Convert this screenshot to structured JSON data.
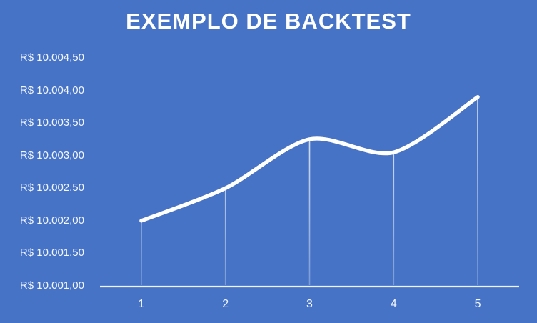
{
  "chart_data": {
    "type": "line",
    "title": "EXEMPLO DE BACKTEST",
    "x": [
      1,
      2,
      3,
      4,
      5
    ],
    "x_tick_labels": [
      "1",
      "2",
      "3",
      "4",
      "5"
    ],
    "series": [
      {
        "name": "Backtest",
        "values": [
          10002.0,
          10002.5,
          10003.25,
          10003.05,
          10003.9
        ]
      }
    ],
    "y_ticks": [
      10001.0,
      10001.5,
      10002.0,
      10002.5,
      10003.0,
      10003.5,
      10004.0,
      10004.5
    ],
    "y_tick_labels": [
      "R$ 10.001,00",
      "R$ 10.001,50",
      "R$ 10.002,00",
      "R$ 10.002,50",
      "R$ 10.003,00",
      "R$ 10.003,50",
      "R$ 10.004,00",
      "R$ 10.004,50"
    ],
    "ylim": [
      10001.0,
      10004.5
    ],
    "currency": "R$",
    "grid": false,
    "legend": false,
    "smooth": true,
    "drop_lines": true,
    "line_color": "#ffffff",
    "axis_color": "#f0f4fc",
    "label_color": "#f2f6fd",
    "background_color": "#4673c6"
  }
}
